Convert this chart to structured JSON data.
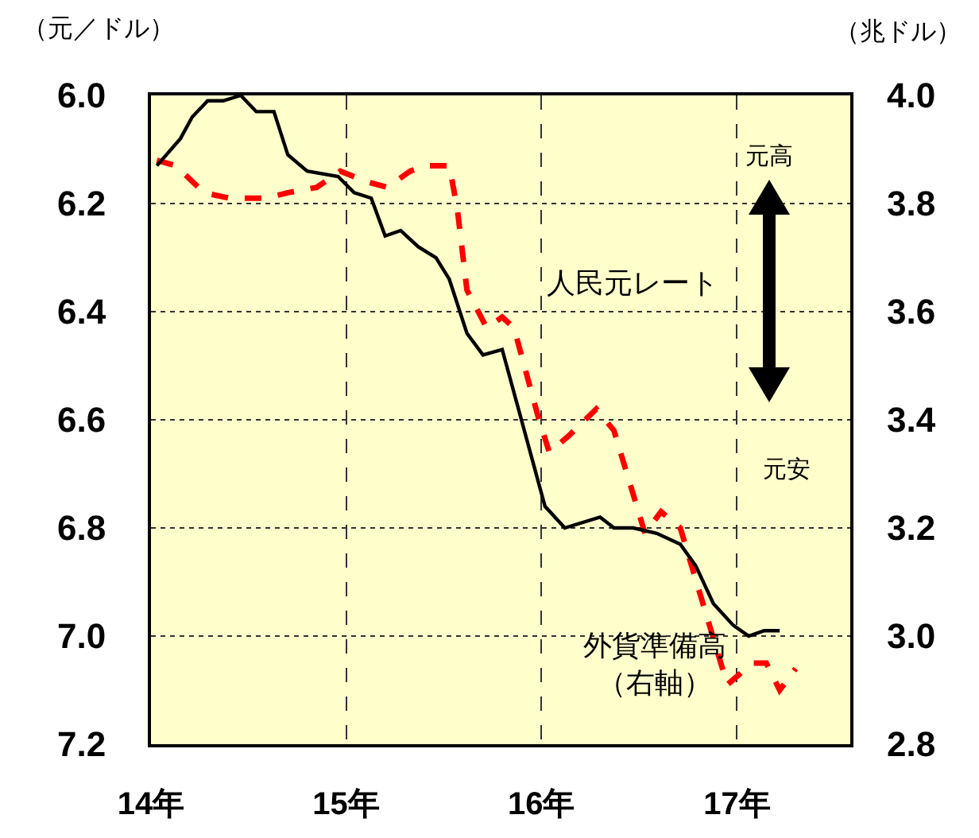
{
  "chart_data": {
    "type": "line",
    "ylabel": "（元／ドル）",
    "y2label": "（兆ドル）",
    "xlim": [
      "2014-01-01",
      "2017-08-01"
    ],
    "xticks": [
      {
        "value": "2014-01-01",
        "label": "14年"
      },
      {
        "value": "2015-01-01",
        "label": "15年"
      },
      {
        "value": "2016-01-01",
        "label": "16年"
      },
      {
        "value": "2017-01-01",
        "label": "17年"
      }
    ],
    "ylim": [
      7.2,
      6.0
    ],
    "yticks": [
      {
        "value": 6.0,
        "label": "6.0"
      },
      6.2,
      6.4,
      6.6,
      6.8,
      {
        "value": 7.0,
        "label": "7.0"
      },
      7.2
    ],
    "y2lim": [
      2.8,
      4.0
    ],
    "y2ticks": [
      2.8,
      {
        "value": 3.0,
        "label": "3.0"
      },
      3.2,
      3.4,
      3.6,
      3.8,
      {
        "value": 4.0,
        "label": "4.0"
      }
    ],
    "grid": true,
    "legend": false,
    "annotations": [
      "元高",
      "元安"
    ],
    "series": [
      {
        "name": "人民元レート",
        "color": "#ff0000",
        "line_style": "dashed",
        "x": [
          "2014-01-12",
          "2014-02-17",
          "2014-04-10",
          "2014-05-27",
          "2014-08-04",
          "2014-09-14",
          "2014-11-07",
          "2014-12-21",
          "2015-02-10",
          "2015-03-19",
          "2015-05-01",
          "2015-05-31",
          "2015-07-13",
          "2015-07-28",
          "2015-08-15",
          "2015-09-21",
          "2015-10-20",
          "2015-11-11",
          "2015-12-25",
          "2016-01-16",
          "2016-02-21",
          "2016-04-13",
          "2016-05-16",
          "2016-07-13",
          "2016-08-12",
          "2016-09-17",
          "2016-12-14",
          "2017-01-30",
          "2017-02-25",
          "2017-03-22",
          "2017-04-21"
        ],
        "values": [
          6.12,
          6.13,
          6.18,
          6.19,
          6.19,
          6.18,
          6.17,
          6.14,
          6.16,
          6.17,
          6.14,
          6.13,
          6.13,
          6.21,
          6.36,
          6.43,
          6.41,
          6.43,
          6.59,
          6.66,
          6.63,
          6.58,
          6.62,
          6.81,
          6.77,
          6.8,
          7.09,
          7.05,
          7.05,
          7.1,
          7.06
        ]
      },
      {
        "name": "外貨準備高（右軸）",
        "color": "#000000",
        "line_style": "solid",
        "axis": "y2",
        "x": [
          "2014-01-12",
          "2014-02-25",
          "2014-03-19",
          "2014-04-17",
          "2014-05-16",
          "2014-06-18",
          "2014-07-17",
          "2014-08-19",
          "2014-09-14",
          "2014-10-20",
          "2014-12-17",
          "2015-01-16",
          "2015-02-17",
          "2015-03-15",
          "2015-04-13",
          "2015-05-16",
          "2015-06-18",
          "2015-07-13",
          "2015-08-15",
          "2015-09-14",
          "2015-10-20",
          "2016-01-08",
          "2016-02-14",
          "2016-04-20",
          "2016-05-16",
          "2016-06-21",
          "2016-08-04",
          "2016-09-17",
          "2016-10-16",
          "2016-11-18",
          "2016-12-25",
          "2017-01-23",
          "2017-02-21",
          "2017-03-22"
        ],
        "values": [
          3.87,
          3.92,
          3.96,
          3.99,
          3.99,
          4.0,
          3.97,
          3.97,
          3.89,
          3.86,
          3.85,
          3.82,
          3.81,
          3.74,
          3.75,
          3.72,
          3.7,
          3.66,
          3.56,
          3.52,
          3.53,
          3.24,
          3.2,
          3.22,
          3.2,
          3.2,
          3.19,
          3.17,
          3.13,
          3.06,
          3.02,
          3.0,
          3.01,
          3.01
        ]
      }
    ]
  }
}
